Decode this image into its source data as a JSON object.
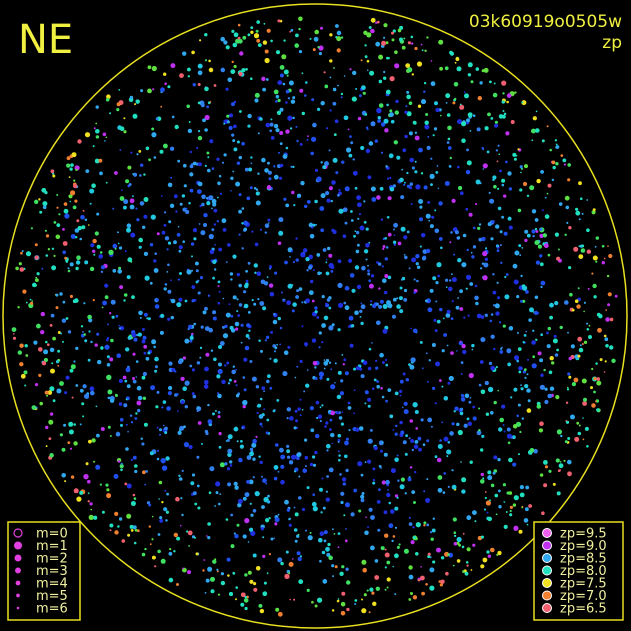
{
  "header": {
    "direction": "NE",
    "image_id": "03k60919o0505w",
    "mode": "zp"
  },
  "magnitude_legend": {
    "color": "#e040e0",
    "items": [
      "m=0",
      "m=1",
      "m=2",
      "m=3",
      "m=4",
      "m=5",
      "m=6"
    ]
  },
  "zp_legend": {
    "items": [
      {
        "label": "zp=9.5",
        "color": "#f060f0"
      },
      {
        "label": "zp=9.0",
        "color": "#c030f0"
      },
      {
        "label": "zp=8.5",
        "color": "#30a8f0"
      },
      {
        "label": "zp=8.0",
        "color": "#20e0c0"
      },
      {
        "label": "zp=7.5",
        "color": "#f0e020"
      },
      {
        "label": "zp=7.0",
        "color": "#f08030"
      },
      {
        "label": "zp=6.5",
        "color": "#f06070"
      }
    ]
  }
}
